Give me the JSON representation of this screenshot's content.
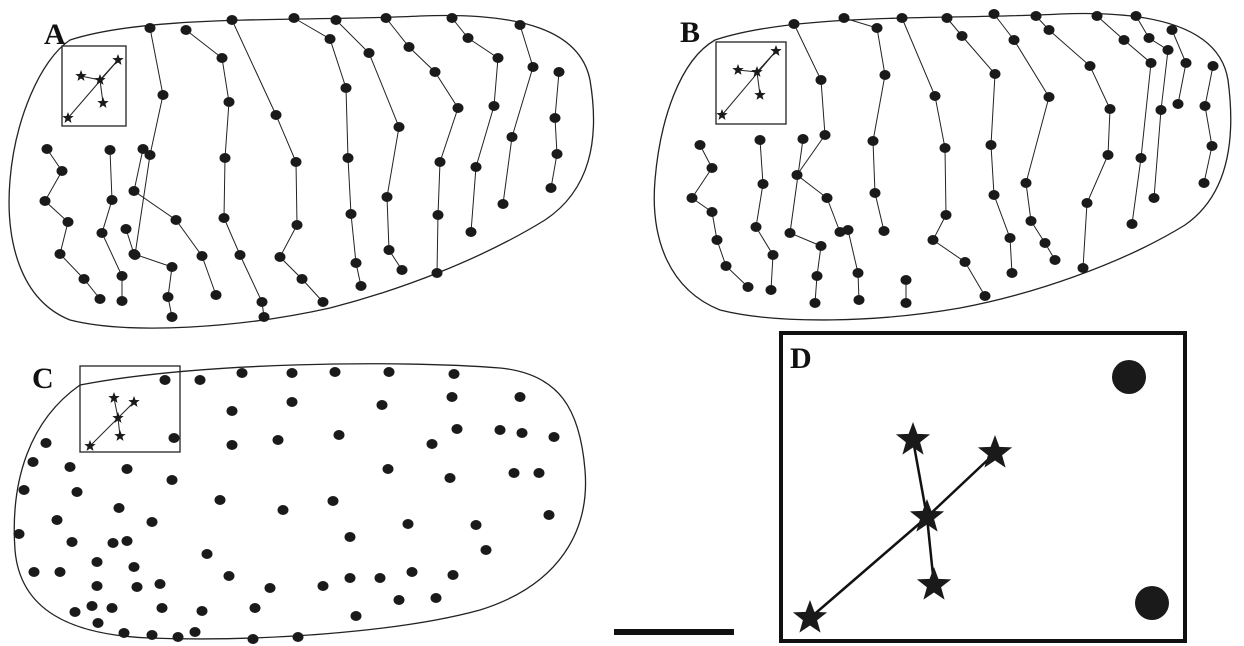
{
  "figure": {
    "panels": {
      "a": {
        "label": "A"
      },
      "b": {
        "label": "B"
      },
      "c": {
        "label": "C"
      },
      "d": {
        "label": "D"
      }
    },
    "colors": {
      "ink": "#1a1a1a",
      "background": "#ffffff"
    },
    "icons": {
      "nucleus": "filled-ellipse",
      "neuroblast": "filled-five-point-star"
    }
  }
}
